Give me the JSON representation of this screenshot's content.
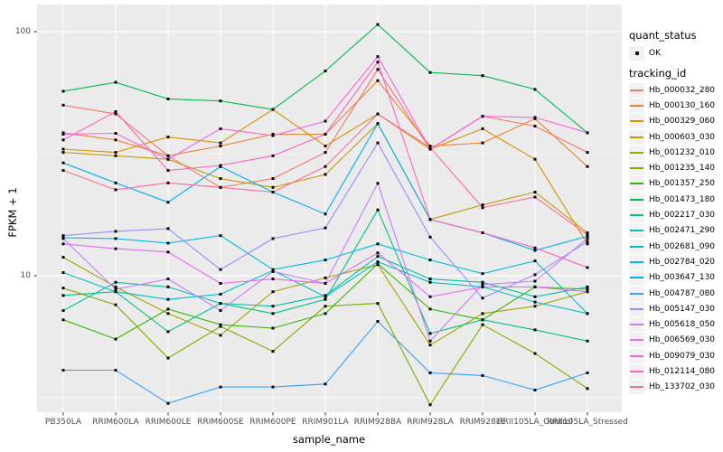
{
  "figure": {
    "y_axis_title": "FPKM + 1",
    "x_axis_title": "sample_name",
    "legend": {
      "quant_status_title": "quant_status",
      "quant_status_items": [
        {
          "label": "OK"
        }
      ],
      "tracking_id_title": "tracking_id"
    },
    "colors": {
      "panel_background": "#EBEBEB",
      "gridline": "#FFFFFF",
      "legend_key_background": "#F2F2F2",
      "point_color": "#000000",
      "tick_text": "#4D4D4D",
      "axis_tick_mark": "#333333"
    }
  },
  "chart_data": {
    "type": "line",
    "title": "",
    "xlabel": "sample_name",
    "ylabel": "FPKM + 1",
    "y_scale": "log10",
    "ylim": [
      2.7,
      122
    ],
    "y_major_ticks": [
      {
        "value": 100,
        "label": "100"
      },
      {
        "value": 10,
        "label": "10"
      }
    ],
    "y_minor_gridlines": [
      31.62,
      3.162
    ],
    "grid": true,
    "legend_position": "right",
    "point_shape": "filled-square-black",
    "quant_status": "OK",
    "categories": [
      "PB350LA",
      "RRIM600LA",
      "RRIM600LE",
      "RRIM600SE",
      "RRIM600PE",
      "RRIM901LA",
      "RRIM928BA",
      "RRIM928LA",
      "RRIM928LE",
      "RRII105LA_Control",
      "RRII105LA_Stressed"
    ],
    "series": [
      {
        "name": "Hb_000032_280",
        "color": "#F8766D",
        "values": [
          50,
          46,
          31,
          23,
          25,
          32,
          70,
          33,
          45,
          41,
          32
        ]
      },
      {
        "name": "Hb_000130_160",
        "color": "#EA8331",
        "values": [
          38.5,
          36,
          31,
          34,
          38,
          38,
          63,
          34,
          35,
          44,
          28
        ]
      },
      {
        "name": "Hb_000329_060",
        "color": "#D89000",
        "values": [
          33,
          32,
          37,
          35,
          48,
          34,
          46,
          33,
          40,
          30,
          13.5
        ]
      },
      {
        "name": "Hb_000603_030",
        "color": "#C09B00",
        "values": [
          32,
          31,
          30,
          25,
          23,
          26,
          42,
          17,
          19.5,
          22,
          15
        ]
      },
      {
        "name": "Hb_001232_010",
        "color": "#A3A500",
        "values": [
          11.9,
          9.0,
          7.0,
          5.7,
          8.6,
          9.8,
          11.1,
          5.2,
          7.0,
          7.5,
          8.6
        ]
      },
      {
        "name": "Hb_001235_140",
        "color": "#7CAE00",
        "values": [
          8.9,
          7.6,
          4.6,
          6.2,
          4.9,
          7.5,
          7.7,
          2.96,
          6.3,
          4.8,
          3.45
        ]
      },
      {
        "name": "Hb_001357_250",
        "color": "#39B600",
        "values": [
          6.6,
          5.5,
          7.3,
          6.3,
          6.1,
          7.0,
          11.2,
          7.3,
          6.6,
          9.0,
          8.8
        ]
      },
      {
        "name": "Hb_001473_180",
        "color": "#00BB4E",
        "values": [
          57,
          62,
          53,
          52,
          48,
          69,
          107,
          68,
          66,
          58,
          38.5
        ]
      },
      {
        "name": "Hb_002217_030",
        "color": "#00C087",
        "values": [
          8.3,
          8.6,
          5.9,
          7.7,
          7.0,
          8.0,
          18.6,
          5.8,
          6.6,
          6.0,
          5.4
        ]
      },
      {
        "name": "Hb_002471_290",
        "color": "#00C1A3",
        "values": [
          7.2,
          9.4,
          9.0,
          7.7,
          7.5,
          8.3,
          12.0,
          9.7,
          9.4,
          8.2,
          9.0
        ]
      },
      {
        "name": "Hb_002681_090",
        "color": "#00BFC4",
        "values": [
          10.3,
          8.6,
          8.0,
          8.4,
          10.5,
          8.2,
          11.4,
          9.4,
          9.0,
          7.8,
          7.0
        ]
      },
      {
        "name": "Hb_002784_020",
        "color": "#00BAE0",
        "values": [
          14.3,
          14.2,
          13.6,
          14.6,
          10.6,
          11.6,
          13.5,
          11.6,
          10.2,
          11.5,
          7.0
        ]
      },
      {
        "name": "Hb_003647_130",
        "color": "#00B0F6",
        "values": [
          29,
          24,
          20,
          28,
          22,
          17.9,
          42,
          17,
          15,
          12.7,
          14.5
        ]
      },
      {
        "name": "Hb_004787_080",
        "color": "#35A2FF",
        "values": [
          4.1,
          4.1,
          3.0,
          3.5,
          3.5,
          3.6,
          6.5,
          4.0,
          3.9,
          3.4,
          4.0
        ]
      },
      {
        "name": "Hb_005147_030",
        "color": "#9590FF",
        "values": [
          14.6,
          15.2,
          15.6,
          10.6,
          14.2,
          15.7,
          35,
          14.4,
          8.1,
          10.1,
          13.8
        ]
      },
      {
        "name": "Hb_005618_050",
        "color": "#C77CFF",
        "values": [
          14.2,
          8.8,
          9.7,
          7.2,
          10.4,
          9.3,
          23.9,
          5.4,
          9.2,
          9.5,
          14.2
        ]
      },
      {
        "name": "Hb_006569_030",
        "color": "#E76BF3",
        "values": [
          13.5,
          12.9,
          12.5,
          9.3,
          9.7,
          9.3,
          12.4,
          8.2,
          9.0,
          9.0,
          8.6
        ]
      },
      {
        "name": "Hb_009079_030",
        "color": "#FA62DB",
        "values": [
          38,
          38.3,
          30,
          40,
          37.5,
          43,
          79,
          33,
          45,
          44.5,
          38.5
        ]
      },
      {
        "name": "Hb_012114_080",
        "color": "#FF62BC",
        "values": [
          36,
          47,
          27,
          28.3,
          31,
          38,
          75,
          17,
          15,
          13,
          10.8
        ]
      },
      {
        "name": "Hb_133702_030",
        "color": "#FF6A98",
        "values": [
          27,
          22.5,
          24,
          23,
          22,
          28,
          46,
          33.5,
          19,
          21,
          14.7
        ]
      }
    ]
  }
}
